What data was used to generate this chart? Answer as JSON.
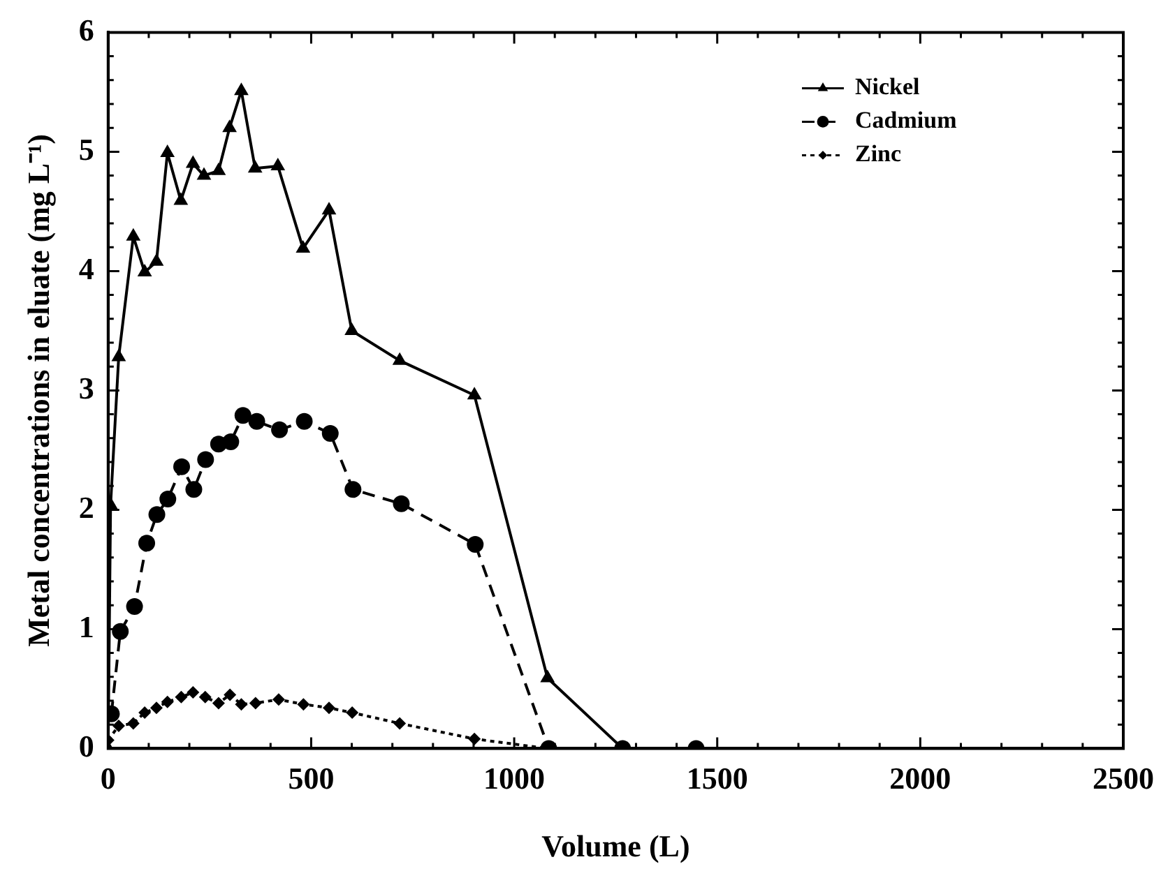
{
  "chart_data": {
    "type": "line",
    "xlabel": "Volume (L)",
    "ylabel": "Metal concentrations in eluate (mg L⁻¹)",
    "xlim": [
      0,
      2500
    ],
    "ylim": [
      0,
      6
    ],
    "xticks": [
      0,
      {
        "value": 100,
        "label": null
      },
      {
        "value": 200,
        "label": null
      },
      {
        "value": 300,
        "label": null
      },
      {
        "value": 400,
        "label": null
      },
      500,
      {
        "value": 600,
        "label": null
      },
      {
        "value": 700,
        "label": null
      },
      {
        "value": 800,
        "label": null
      },
      {
        "value": 900,
        "label": null
      },
      1000,
      {
        "value": 1100,
        "label": null
      },
      {
        "value": 1200,
        "label": null
      },
      {
        "value": 1300,
        "label": null
      },
      {
        "value": 1400,
        "label": null
      },
      1500,
      {
        "value": 1600,
        "label": null
      },
      {
        "value": 1700,
        "label": null
      },
      {
        "value": 1800,
        "label": null
      },
      {
        "value": 1900,
        "label": null
      },
      2000,
      {
        "value": 2100,
        "label": null
      },
      {
        "value": 2200,
        "label": null
      },
      {
        "value": 2300,
        "label": null
      },
      {
        "value": 2400,
        "label": null
      },
      2500
    ],
    "yticks": [
      0,
      {
        "value": 0.2,
        "label": null
      },
      {
        "value": 0.4,
        "label": null
      },
      {
        "value": 0.6,
        "label": null
      },
      {
        "value": 0.8,
        "label": null
      },
      1,
      {
        "value": 1.2,
        "label": null
      },
      {
        "value": 1.4,
        "label": null
      },
      {
        "value": 1.6,
        "label": null
      },
      {
        "value": 1.8,
        "label": null
      },
      2,
      {
        "value": 2.2,
        "label": null
      },
      {
        "value": 2.4,
        "label": null
      },
      {
        "value": 2.6,
        "label": null
      },
      {
        "value": 2.8,
        "label": null
      },
      3,
      {
        "value": 3.2,
        "label": null
      },
      {
        "value": 3.4,
        "label": null
      },
      {
        "value": 3.6,
        "label": null
      },
      {
        "value": 3.8,
        "label": null
      },
      4,
      {
        "value": 4.2,
        "label": null
      },
      {
        "value": 4.4,
        "label": null
      },
      {
        "value": 4.6,
        "label": null
      },
      {
        "value": 4.8,
        "label": null
      },
      5,
      {
        "value": 5.2,
        "label": null
      },
      {
        "value": 5.4,
        "label": null
      },
      {
        "value": 5.6,
        "label": null
      },
      {
        "value": 5.8,
        "label": null
      },
      6
    ],
    "grid": false,
    "legend": "top right",
    "series": [
      {
        "name": "Nickel",
        "color": "#000000",
        "marker": "triangle",
        "line_style": "solid",
        "x": [
          0,
          6,
          26,
          62,
          90,
          119,
          146,
          179,
          209,
          236,
          272,
          299,
          328,
          362,
          418,
          480,
          544,
          600,
          718,
          902,
          1082,
          1267
        ],
        "values": [
          0,
          2.04,
          3.28,
          4.29,
          3.99,
          4.08,
          4.99,
          4.59,
          4.9,
          4.8,
          4.84,
          5.2,
          5.51,
          4.86,
          4.88,
          4.19,
          4.51,
          3.5,
          3.25,
          2.96,
          0.59,
          0
        ]
      },
      {
        "name": "Cadmium",
        "color": "#000000",
        "marker": "circle",
        "line_style": "dashed",
        "x": [
          8,
          30,
          65,
          95,
          120,
          147,
          181,
          211,
          240,
          272,
          302,
          332,
          366,
          422,
          483,
          547,
          603,
          722,
          904,
          1085,
          1267,
          1448
        ],
        "values": [
          0.29,
          0.98,
          1.19,
          1.72,
          1.96,
          2.09,
          2.36,
          2.17,
          2.42,
          2.55,
          2.57,
          2.79,
          2.74,
          2.67,
          2.74,
          2.64,
          2.17,
          2.05,
          1.71,
          0,
          0,
          0
        ]
      },
      {
        "name": "Zinc",
        "color": "#000000",
        "marker": "diamond",
        "line_style": "dotted",
        "x": [
          0,
          26,
          62,
          90,
          119,
          146,
          180,
          209,
          239,
          272,
          300,
          328,
          363,
          420,
          481,
          544,
          601,
          718,
          902,
          1082
        ],
        "values": [
          0.07,
          0.19,
          0.21,
          0.3,
          0.34,
          0.39,
          0.43,
          0.47,
          0.43,
          0.38,
          0.45,
          0.37,
          0.38,
          0.41,
          0.37,
          0.34,
          0.3,
          0.21,
          0.08,
          0
        ]
      }
    ]
  }
}
